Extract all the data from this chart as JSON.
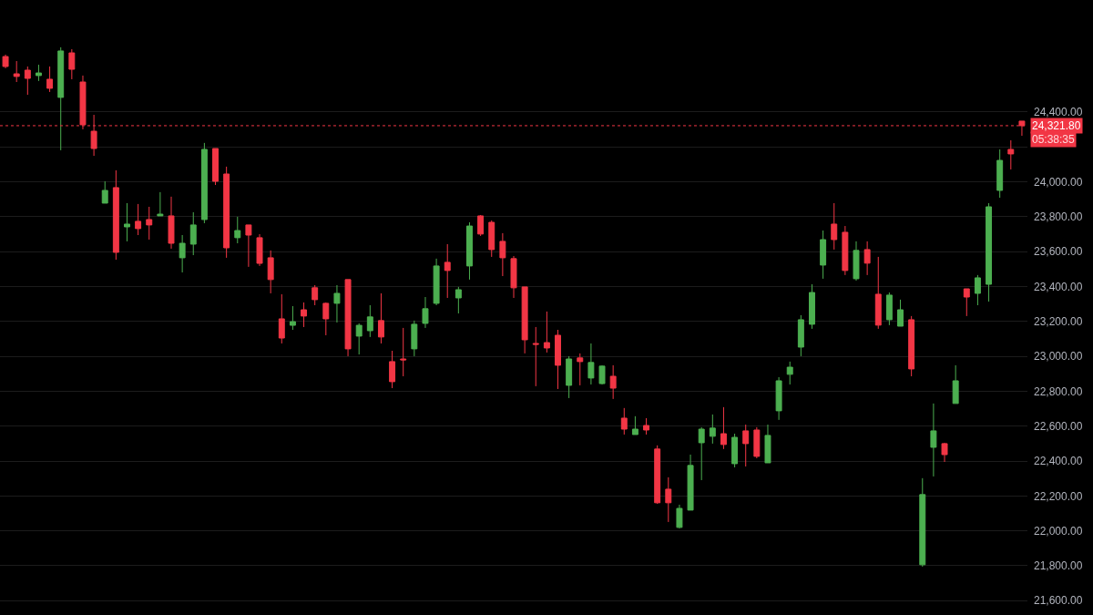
{
  "chart_data": {
    "type": "candlestick",
    "categories": [
      null,
      null,
      null,
      null,
      null,
      null,
      null,
      null,
      null,
      null,
      null,
      null,
      null,
      null,
      null,
      null,
      null,
      null,
      null,
      null,
      null,
      null,
      null,
      null,
      null,
      null,
      null,
      null,
      null,
      null,
      null,
      null,
      null,
      null,
      null,
      null,
      null,
      null,
      null,
      null,
      null,
      null,
      null,
      null,
      null,
      null,
      null,
      null,
      null,
      null,
      null,
      null,
      null,
      null,
      null,
      null,
      null,
      null,
      null,
      null,
      null,
      null,
      null,
      null,
      null,
      null,
      null,
      null,
      null,
      null,
      null,
      null,
      null,
      null,
      null,
      null,
      null,
      null,
      null,
      null,
      null,
      null,
      null,
      null,
      null,
      null,
      null,
      null,
      null,
      null,
      null,
      null,
      null
    ],
    "ohlc": [
      [
        24718,
        24729,
        24651,
        24661
      ],
      [
        24619,
        24692,
        24572,
        24604
      ],
      [
        24640,
        24661,
        24499,
        24593
      ],
      [
        24609,
        24671,
        24578,
        24624
      ],
      [
        24588,
        24661,
        24515,
        24536
      ],
      [
        24484,
        24771,
        24181,
        24750
      ],
      [
        24739,
        24760,
        24588,
        24645
      ],
      [
        24572,
        24609,
        24301,
        24327
      ],
      [
        24290,
        24384,
        24149,
        24191
      ],
      [
        23878,
        24003,
        23878,
        23951
      ],
      [
        23967,
        24066,
        23554,
        23596
      ],
      [
        23742,
        23878,
        23659,
        23758
      ],
      [
        23774,
        23873,
        23695,
        23732
      ],
      [
        23784,
        23857,
        23669,
        23753
      ],
      [
        23805,
        23941,
        23805,
        23815
      ],
      [
        23805,
        23915,
        23617,
        23648
      ],
      [
        23565,
        23695,
        23481,
        23648
      ],
      [
        23643,
        23826,
        23580,
        23753
      ],
      [
        23784,
        24223,
        23763,
        24186
      ],
      [
        24191,
        24191,
        23982,
        24003
      ],
      [
        24045,
        24087,
        23565,
        23622
      ],
      [
        23680,
        23800,
        23648,
        23721
      ],
      [
        23753,
        23753,
        23513,
        23695
      ],
      [
        23680,
        23700,
        23518,
        23533
      ],
      [
        23565,
        23607,
        23361,
        23440
      ],
      [
        23215,
        23356,
        23074,
        23105
      ],
      [
        23178,
        23288,
        23152,
        23199
      ],
      [
        23267,
        23309,
        23168,
        23231
      ],
      [
        23393,
        23408,
        23293,
        23325
      ],
      [
        23304,
        23309,
        23121,
        23215
      ],
      [
        23304,
        23408,
        23194,
        23361
      ],
      [
        23440,
        23440,
        23001,
        23043
      ],
      [
        23116,
        23189,
        23011,
        23178
      ],
      [
        23147,
        23293,
        23111,
        23226
      ],
      [
        23205,
        23361,
        23074,
        23111
      ],
      [
        22970,
        23032,
        22818,
        22855
      ],
      [
        22985,
        23163,
        22886,
        22980
      ],
      [
        23043,
        23205,
        23001,
        23184
      ],
      [
        23189,
        23340,
        23163,
        23273
      ],
      [
        23304,
        23560,
        23293,
        23518
      ],
      [
        23539,
        23643,
        23335,
        23492
      ],
      [
        23335,
        23398,
        23246,
        23382
      ],
      [
        23518,
        23768,
        23440,
        23747
      ],
      [
        23805,
        23810,
        23690,
        23701
      ],
      [
        23768,
        23779,
        23570,
        23612
      ],
      [
        23659,
        23706,
        23460,
        23565
      ],
      [
        23560,
        23575,
        23335,
        23393
      ],
      [
        23398,
        23398,
        23017,
        23095
      ],
      [
        23074,
        23168,
        22829,
        23069
      ],
      [
        23079,
        23257,
        23022,
        23048
      ],
      [
        23121,
        23152,
        22813,
        22949
      ],
      [
        22834,
        23001,
        22761,
        22985
      ],
      [
        22991,
        23017,
        22834,
        22970
      ],
      [
        22876,
        23074,
        22839,
        22965
      ],
      [
        22844,
        22949,
        22839,
        22944
      ],
      [
        22886,
        22949,
        22756,
        22818
      ],
      [
        22646,
        22704,
        22552,
        22583
      ],
      [
        22552,
        22657,
        22552,
        22583
      ],
      [
        22604,
        22646,
        22552,
        22578
      ],
      [
        22469,
        22490,
        22155,
        22161
      ],
      [
        22239,
        22307,
        22051,
        22161
      ],
      [
        22020,
        22150,
        22014,
        22129
      ],
      [
        22119,
        22437,
        22119,
        22375
      ],
      [
        22505,
        22594,
        22291,
        22583
      ],
      [
        22542,
        22667,
        22500,
        22589
      ],
      [
        22557,
        22709,
        22469,
        22495
      ],
      [
        22385,
        22557,
        22364,
        22536
      ],
      [
        22573,
        22609,
        22369,
        22500
      ],
      [
        22578,
        22594,
        22416,
        22427
      ],
      [
        22390,
        22609,
        22390,
        22547
      ],
      [
        22688,
        22881,
        22636,
        22860
      ],
      [
        22897,
        22970,
        22839,
        22938
      ],
      [
        23053,
        23236,
        23001,
        23210
      ],
      [
        23184,
        23413,
        23158,
        23366
      ],
      [
        23523,
        23721,
        23445,
        23669
      ],
      [
        23758,
        23878,
        23612,
        23669
      ],
      [
        23711,
        23747,
        23466,
        23492
      ],
      [
        23445,
        23659,
        23434,
        23607
      ],
      [
        23612,
        23659,
        23466,
        23534
      ],
      [
        23356,
        23570,
        23158,
        23179
      ],
      [
        23210,
        23366,
        23179,
        23351
      ],
      [
        23173,
        23325,
        23173,
        23267
      ],
      [
        23210,
        23231,
        22886,
        22928
      ],
      [
        21806,
        22302,
        21795,
        22208
      ],
      [
        22479,
        22730,
        22312,
        22573
      ],
      [
        22500,
        22505,
        22395,
        22437
      ],
      [
        22730,
        22949,
        22730,
        22860
      ],
      [
        23387,
        23387,
        23231,
        23340
      ],
      [
        23361,
        23466,
        23293,
        23450
      ],
      [
        23413,
        23878,
        23314,
        23857
      ],
      [
        23951,
        24186,
        23909,
        24123
      ],
      [
        24186,
        24238,
        24071,
        24160
      ],
      [
        24348,
        24348,
        24264,
        24321.8
      ]
    ],
    "colors": [
      "#f23645",
      "#f23645",
      "#f23645",
      "#4caf50",
      "#f23645",
      "#4caf50",
      "#f23645",
      "#f23645",
      "#f23645",
      "#4caf50",
      "#f23645",
      "#4caf50",
      "#f23645",
      "#f23645",
      "#4caf50",
      "#f23645",
      "#4caf50",
      "#4caf50",
      "#4caf50",
      "#f23645",
      "#f23645",
      "#4caf50",
      "#f23645",
      "#f23645",
      "#f23645",
      "#f23645",
      "#4caf50",
      "#f23645",
      "#f23645",
      "#f23645",
      "#4caf50",
      "#f23645",
      "#4caf50",
      "#4caf50",
      "#f23645",
      "#f23645",
      "#f23645",
      "#4caf50",
      "#4caf50",
      "#4caf50",
      "#f23645",
      "#4caf50",
      "#4caf50",
      "#f23645",
      "#f23645",
      "#f23645",
      "#f23645",
      "#f23645",
      "#f23645",
      "#f23645",
      "#f23645",
      "#4caf50",
      "#f23645",
      "#4caf50",
      "#4caf50",
      "#f23645",
      "#f23645",
      "#4caf50",
      "#f23645",
      "#f23645",
      "#f23645",
      "#4caf50",
      "#4caf50",
      "#4caf50",
      "#4caf50",
      "#f23645",
      "#4caf50",
      "#f23645",
      "#f23645",
      "#4caf50",
      "#4caf50",
      "#4caf50",
      "#4caf50",
      "#4caf50",
      "#4caf50",
      "#f23645",
      "#f23645",
      "#4caf50",
      "#f23645",
      "#f23645",
      "#4caf50",
      "#4caf50",
      "#f23645",
      "#4caf50",
      "#4caf50",
      "#f23645",
      "#4caf50",
      "#f23645",
      "#4caf50",
      "#4caf50",
      "#4caf50",
      "#f23645",
      "#f23645"
    ],
    "ylim": [
      21518,
      25042
    ],
    "yticks": [
      {
        "value": 21600,
        "label": "21,600.00"
      },
      {
        "value": 21800,
        "label": "21,800.00"
      },
      {
        "value": 22000,
        "label": "22,000.00"
      },
      {
        "value": 22200,
        "label": "22,200.00"
      },
      {
        "value": 22400,
        "label": "22,400.00"
      },
      {
        "value": 22600,
        "label": "22,600.00"
      },
      {
        "value": 22800,
        "label": "22,800.00"
      },
      {
        "value": 23000,
        "label": "23,000.00"
      },
      {
        "value": 23200,
        "label": "23,200.00"
      },
      {
        "value": 23400,
        "label": "23,400.00"
      },
      {
        "value": 23600,
        "label": "23,600.00"
      },
      {
        "value": 23800,
        "label": "23,800.00"
      },
      {
        "value": 24000,
        "label": "24,000.00"
      },
      {
        "value": 24200,
        "label": null
      },
      {
        "value": 24400,
        "label": "24,400.00"
      }
    ],
    "grid": "y",
    "tick_labels": "y",
    "ref_lines": [
      {
        "axis": "y",
        "value": 24321.8,
        "label": "24,321.80",
        "color": "#f23645",
        "line_style": "dotted"
      }
    ],
    "annotations": [
      "05:38:35"
    ]
  }
}
